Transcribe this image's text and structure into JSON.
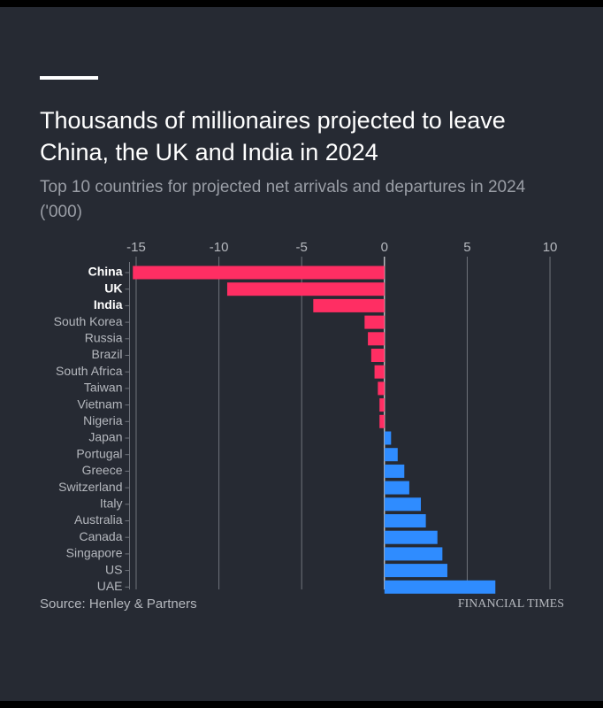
{
  "chart_data": {
    "type": "bar",
    "orientation": "horizontal",
    "title": "Thousands of millionaires projected to leave China, the UK and India in 2024",
    "subtitle": "Top 10 countries for projected net arrivals and departures in 2024 ('000)",
    "source": "Source: Henley & Partners",
    "brand": "FINANCIAL TIMES",
    "categories": [
      "China",
      "UK",
      "India",
      "South Korea",
      "Russia",
      "Brazil",
      "South Africa",
      "Taiwan",
      "Vietnam",
      "Nigeria",
      "Japan",
      "Portugal",
      "Greece",
      "Switzerland",
      "Italy",
      "Australia",
      "Canada",
      "Singapore",
      "US",
      "UAE"
    ],
    "values": [
      -15.2,
      -9.5,
      -4.3,
      -1.2,
      -1.0,
      -0.8,
      -0.6,
      -0.4,
      -0.3,
      -0.3,
      0.4,
      0.8,
      1.2,
      1.5,
      2.2,
      2.5,
      3.2,
      3.5,
      3.8,
      6.7
    ],
    "negative_color": "#ff2e63",
    "positive_color": "#2f8cff",
    "xlim": [
      -15.4,
      10.5
    ],
    "xticks": [
      -15,
      -10,
      -5,
      0,
      5,
      10
    ],
    "grid": true
  }
}
